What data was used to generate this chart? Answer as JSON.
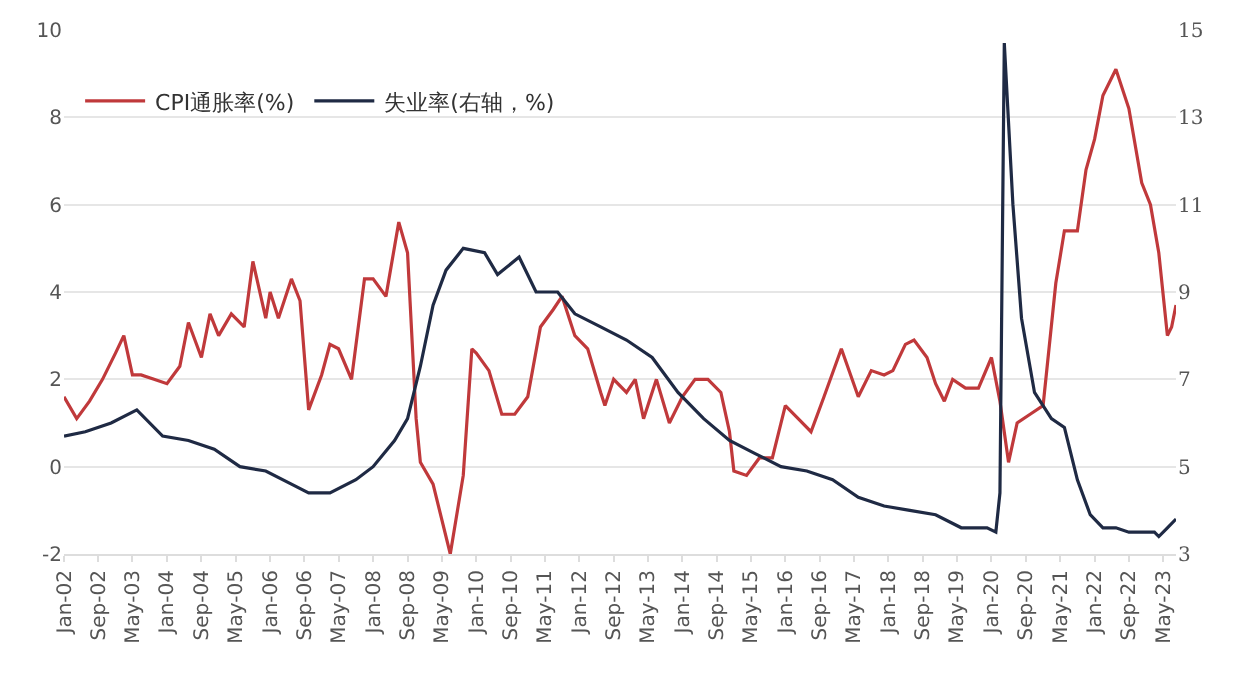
{
  "chart_data": {
    "type": "line",
    "legend": "top left",
    "grid": "y",
    "marker": "none",
    "line_style": "solid",
    "xlim": [
      "2002-01",
      "2023-08"
    ],
    "xticks": [
      {
        "value": "2002-01",
        "label": "Jan-02"
      },
      {
        "value": "2002-09",
        "label": "Sep-02"
      },
      {
        "value": "2003-05",
        "label": "May-03"
      },
      {
        "value": "2004-01",
        "label": "Jan-04"
      },
      {
        "value": "2004-09",
        "label": "Sep-04"
      },
      {
        "value": "2005-05",
        "label": "May-05"
      },
      {
        "value": "2006-01",
        "label": "Jan-06"
      },
      {
        "value": "2006-09",
        "label": "Sep-06"
      },
      {
        "value": "2007-05",
        "label": "May-07"
      },
      {
        "value": "2008-01",
        "label": "Jan-08"
      },
      {
        "value": "2008-09",
        "label": "Sep-08"
      },
      {
        "value": "2009-05",
        "label": "May-09"
      },
      {
        "value": "2010-01",
        "label": "Jan-10"
      },
      {
        "value": "2010-09",
        "label": "Sep-10"
      },
      {
        "value": "2011-05",
        "label": "May-11"
      },
      {
        "value": "2012-01",
        "label": "Jan-12"
      },
      {
        "value": "2012-09",
        "label": "Sep-12"
      },
      {
        "value": "2013-05",
        "label": "May-13"
      },
      {
        "value": "2014-01",
        "label": "Jan-14"
      },
      {
        "value": "2014-09",
        "label": "Sep-14"
      },
      {
        "value": "2015-05",
        "label": "May-15"
      },
      {
        "value": "2016-01",
        "label": "Jan-16"
      },
      {
        "value": "2016-09",
        "label": "Sep-16"
      },
      {
        "value": "2017-05",
        "label": "May-17"
      },
      {
        "value": "2018-01",
        "label": "Jan-18"
      },
      {
        "value": "2018-09",
        "label": "Sep-18"
      },
      {
        "value": "2019-05",
        "label": "May-19"
      },
      {
        "value": "2020-01",
        "label": "Jan-20"
      },
      {
        "value": "2020-09",
        "label": "Sep-20"
      },
      {
        "value": "2021-05",
        "label": "May-21"
      },
      {
        "value": "2022-01",
        "label": "Jan-22"
      },
      {
        "value": "2022-09",
        "label": "Sep-22"
      },
      {
        "value": "2023-05",
        "label": "May-23"
      }
    ],
    "ylim": [
      -2,
      10
    ],
    "yticks": [
      -2,
      0,
      2,
      4,
      6,
      8,
      10
    ],
    "y2lim": [
      3,
      15
    ],
    "y2ticks": [
      3,
      5,
      7,
      9,
      11,
      13,
      15
    ],
    "series": [
      {
        "name": "CPI通胀率(%)",
        "color": "#c0393b",
        "x": [
          "2002-01",
          "2002-04",
          "2002-07",
          "2002-10",
          "2003-01",
          "2003-03",
          "2003-05",
          "2003-07",
          "2003-10",
          "2004-01",
          "2004-04",
          "2004-06",
          "2004-09",
          "2004-11",
          "2005-01",
          "2005-04",
          "2005-07",
          "2005-09",
          "2005-12",
          "2006-01",
          "2006-03",
          "2006-06",
          "2006-08",
          "2006-10",
          "2007-01",
          "2007-03",
          "2007-05",
          "2007-08",
          "2007-11",
          "2008-01",
          "2008-04",
          "2008-07",
          "2008-09",
          "2008-11",
          "2008-12",
          "2009-03",
          "2009-07",
          "2009-10",
          "2009-12",
          "2010-01",
          "2010-04",
          "2010-07",
          "2010-10",
          "2011-01",
          "2011-04",
          "2011-07",
          "2011-09",
          "2011-12",
          "2012-03",
          "2012-06",
          "2012-07",
          "2012-09",
          "2012-12",
          "2013-02",
          "2013-04",
          "2013-07",
          "2013-10",
          "2014-01",
          "2014-04",
          "2014-07",
          "2014-10",
          "2014-12",
          "2015-01",
          "2015-04",
          "2015-07",
          "2015-10",
          "2016-01",
          "2016-04",
          "2016-07",
          "2016-10",
          "2017-02",
          "2017-06",
          "2017-09",
          "2017-12",
          "2018-02",
          "2018-05",
          "2018-07",
          "2018-10",
          "2018-12",
          "2019-02",
          "2019-04",
          "2019-07",
          "2019-10",
          "2020-01",
          "2020-03",
          "2020-05",
          "2020-07",
          "2020-10",
          "2021-01",
          "2021-04",
          "2021-06",
          "2021-09",
          "2021-11",
          "2022-01",
          "2022-03",
          "2022-06",
          "2022-09",
          "2022-12",
          "2023-02",
          "2023-04",
          "2023-06",
          "2023-07",
          "2023-08"
        ],
        "values": [
          1.6,
          1.1,
          1.5,
          2.0,
          2.6,
          3.0,
          2.1,
          2.1,
          2.0,
          1.9,
          2.3,
          3.3,
          2.5,
          3.5,
          3.0,
          3.5,
          3.2,
          4.7,
          3.4,
          4.0,
          3.4,
          4.3,
          3.8,
          1.3,
          2.1,
          2.8,
          2.7,
          2.0,
          4.3,
          4.3,
          3.9,
          5.6,
          4.9,
          1.1,
          0.1,
          -0.4,
          -2.0,
          -0.2,
          2.7,
          2.6,
          2.2,
          1.2,
          1.2,
          1.6,
          3.2,
          3.6,
          3.9,
          3.0,
          2.7,
          1.7,
          1.4,
          2.0,
          1.7,
          2.0,
          1.1,
          2.0,
          1.0,
          1.6,
          2.0,
          2.0,
          1.7,
          0.8,
          -0.1,
          -0.2,
          0.2,
          0.2,
          1.4,
          1.1,
          0.8,
          1.6,
          2.7,
          1.6,
          2.2,
          2.1,
          2.2,
          2.8,
          2.9,
          2.5,
          1.9,
          1.5,
          2.0,
          1.8,
          1.8,
          2.5,
          1.5,
          0.1,
          1.0,
          1.2,
          1.4,
          4.2,
          5.4,
          5.4,
          6.8,
          7.5,
          8.5,
          9.1,
          8.2,
          6.5,
          6.0,
          4.9,
          3.0,
          3.2,
          3.7
        ]
      },
      {
        "name": "失业率(右轴，%)",
        "color": "#1f2a44",
        "axis": "y2",
        "x": [
          "2002-01",
          "2002-06",
          "2002-12",
          "2003-06",
          "2003-12",
          "2004-06",
          "2004-12",
          "2005-06",
          "2005-12",
          "2006-06",
          "2006-10",
          "2007-03",
          "2007-09",
          "2008-01",
          "2008-06",
          "2008-09",
          "2008-12",
          "2009-03",
          "2009-06",
          "2009-10",
          "2010-03",
          "2010-06",
          "2010-11",
          "2011-03",
          "2011-08",
          "2011-12",
          "2012-06",
          "2012-12",
          "2013-06",
          "2013-12",
          "2014-06",
          "2014-12",
          "2015-06",
          "2015-12",
          "2016-06",
          "2016-12",
          "2017-06",
          "2017-12",
          "2018-06",
          "2018-12",
          "2019-06",
          "2019-12",
          "2020-02",
          "2020-03",
          "2020-04",
          "2020-06",
          "2020-08",
          "2020-11",
          "2021-03",
          "2021-06",
          "2021-09",
          "2021-12",
          "2022-03",
          "2022-06",
          "2022-09",
          "2022-12",
          "2023-03",
          "2023-04",
          "2023-06",
          "2023-08"
        ],
        "values": [
          5.7,
          5.8,
          6.0,
          6.3,
          5.7,
          5.6,
          5.4,
          5.0,
          4.9,
          4.6,
          4.4,
          4.4,
          4.7,
          5.0,
          5.6,
          6.1,
          7.3,
          8.7,
          9.5,
          10.0,
          9.9,
          9.4,
          9.8,
          9.0,
          9.0,
          8.5,
          8.2,
          7.9,
          7.5,
          6.7,
          6.1,
          5.6,
          5.3,
          5.0,
          4.9,
          4.7,
          4.3,
          4.1,
          4.0,
          3.9,
          3.6,
          3.6,
          3.5,
          4.4,
          14.7,
          11.0,
          8.4,
          6.7,
          6.1,
          5.9,
          4.7,
          3.9,
          3.6,
          3.6,
          3.5,
          3.5,
          3.5,
          3.4,
          3.6,
          3.8
        ]
      }
    ]
  }
}
